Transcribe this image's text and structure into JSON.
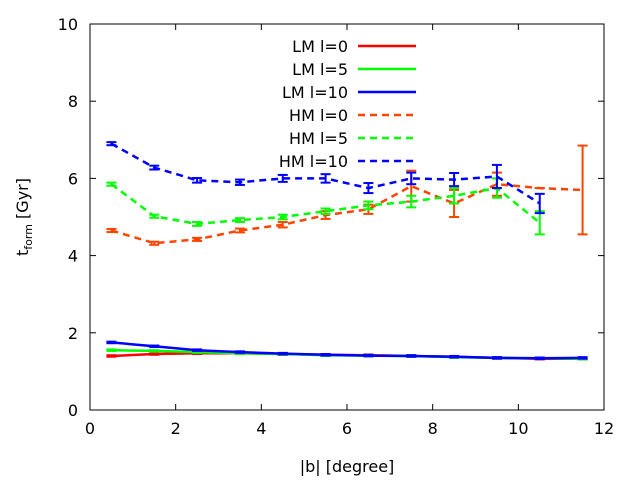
{
  "chart_data": {
    "type": "line",
    "title": "",
    "xlabel": "|b|  [degree]",
    "ylabel_main": "t",
    "ylabel_sub": "form",
    "ylabel_unit": " [Gyr]",
    "xlim": [
      0,
      12
    ],
    "ylim": [
      0,
      10
    ],
    "xticks": [
      0,
      2,
      4,
      6,
      8,
      10,
      12
    ],
    "yticks": [
      0,
      2,
      4,
      6,
      8,
      10
    ],
    "grid": false,
    "legend_position": "top-center",
    "series": [
      {
        "name": "LM l=0",
        "color": "#ff0000",
        "dash": "solid",
        "x": [
          0.5,
          1.5,
          2.5,
          3.5,
          4.5,
          5.5,
          6.5,
          7.5,
          8.5,
          9.5,
          10.5,
          11.5
        ],
        "y": [
          1.4,
          1.45,
          1.47,
          1.47,
          1.45,
          1.43,
          1.42,
          1.4,
          1.38,
          1.35,
          1.33,
          1.33
        ],
        "err": [
          0.02,
          0.02,
          0.02,
          0.02,
          0.02,
          0.02,
          0.02,
          0.02,
          0.02,
          0.02,
          0.02,
          0.02
        ]
      },
      {
        "name": "LM l=5",
        "color": "#00ff00",
        "dash": "solid",
        "x": [
          0.5,
          1.5,
          2.5,
          3.5,
          4.5,
          5.5,
          6.5,
          7.5,
          8.5,
          9.5,
          10.5,
          11.5
        ],
        "y": [
          1.55,
          1.53,
          1.5,
          1.47,
          1.45,
          1.42,
          1.41,
          1.4,
          1.37,
          1.35,
          1.34,
          1.33
        ],
        "err": [
          0.02,
          0.02,
          0.02,
          0.02,
          0.02,
          0.02,
          0.02,
          0.02,
          0.02,
          0.02,
          0.02,
          0.02
        ]
      },
      {
        "name": "LM l=10",
        "color": "#0000ff",
        "dash": "solid",
        "x": [
          0.5,
          1.5,
          2.5,
          3.5,
          4.5,
          5.5,
          6.5,
          7.5,
          8.5,
          9.5,
          10.5,
          11.5
        ],
        "y": [
          1.75,
          1.65,
          1.55,
          1.5,
          1.46,
          1.43,
          1.41,
          1.4,
          1.38,
          1.35,
          1.34,
          1.35
        ],
        "err": [
          0.02,
          0.02,
          0.02,
          0.02,
          0.02,
          0.02,
          0.02,
          0.02,
          0.02,
          0.02,
          0.02,
          0.02
        ]
      },
      {
        "name": "HM l=0",
        "color": "#ff4500",
        "dash": "dashed",
        "x": [
          0.5,
          1.5,
          2.5,
          3.5,
          4.5,
          5.5,
          6.5,
          7.5,
          8.5,
          9.5,
          10.5,
          11.5
        ],
        "y": [
          4.65,
          4.32,
          4.42,
          4.65,
          4.8,
          5.05,
          5.2,
          5.8,
          5.35,
          5.85,
          5.75,
          5.7
        ],
        "err": [
          0.04,
          0.04,
          0.04,
          0.05,
          0.07,
          0.1,
          0.12,
          0.4,
          0.35,
          0.3,
          0.0,
          1.15
        ]
      },
      {
        "name": "HM l=5",
        "color": "#00ff00",
        "dash": "dashed",
        "x": [
          0.5,
          1.5,
          2.5,
          3.5,
          4.5,
          5.5,
          6.5,
          7.5,
          8.5,
          9.5,
          10.5
        ],
        "y": [
          5.85,
          5.02,
          4.82,
          4.92,
          5.0,
          5.15,
          5.3,
          5.4,
          5.55,
          5.75,
          4.85
        ],
        "err": [
          0.04,
          0.04,
          0.05,
          0.05,
          0.06,
          0.07,
          0.1,
          0.15,
          0.2,
          0.25,
          0.3
        ]
      },
      {
        "name": "HM l=10",
        "color": "#0000ff",
        "dash": "dashed",
        "x": [
          0.5,
          1.5,
          2.5,
          3.5,
          4.5,
          5.5,
          6.5,
          7.5,
          8.5,
          9.5,
          10.5
        ],
        "y": [
          6.9,
          6.28,
          5.95,
          5.9,
          6.0,
          6.0,
          5.75,
          6.0,
          5.97,
          6.05,
          5.35
        ],
        "err": [
          0.04,
          0.05,
          0.06,
          0.07,
          0.09,
          0.11,
          0.13,
          0.15,
          0.17,
          0.3,
          0.25
        ]
      }
    ]
  }
}
